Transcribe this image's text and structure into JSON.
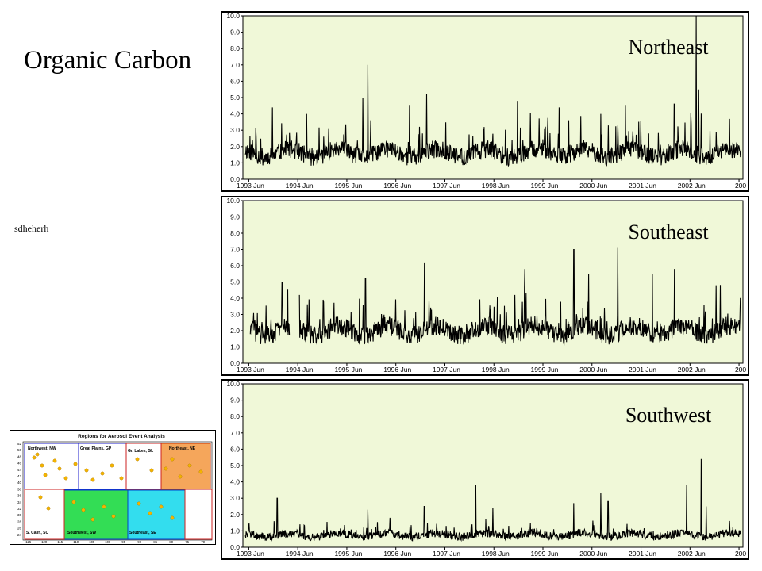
{
  "page": {
    "title": "Organic Carbon",
    "note": "sdheherh"
  },
  "colors": {
    "plot_background": "#f0f8d8",
    "series_line": "#000000",
    "map_northeast": "#f5a65b",
    "map_southwest": "#33dd55",
    "map_southeast": "#33ddee",
    "map_site_dot": "#f5b400"
  },
  "chart_data": [
    {
      "type": "line",
      "region_label": "Northeast",
      "x_tick_labels": [
        "1993 Jun",
        "1994 Jun",
        "1995 Jun",
        "1996 Jun",
        "1997 Jun",
        "1998 Jun",
        "1999 Jun",
        "2000 Jun",
        "2001 Jun",
        "2002 Jun",
        "200"
      ],
      "y_tick_labels": [
        "0.0",
        "1.0",
        "2.0",
        "3.0",
        "4.0",
        "5.0",
        "6.0",
        "7.0",
        "8.0",
        "9.0",
        "10.0"
      ],
      "ylim": [
        0,
        10
      ],
      "xlim": [
        1993.3,
        2003.5
      ],
      "series": [
        {
          "baseline": 1.6,
          "noise": 0.55,
          "spike_rate": 0.07,
          "spike_scale": 1.6,
          "seed": 11,
          "peaks": [
            [
              1995.85,
              7.0
            ],
            [
              1995.75,
              5.0
            ],
            [
              1997.05,
              5.2
            ],
            [
              1993.9,
              4.4
            ],
            [
              1996.7,
              4.5
            ],
            [
              1998.9,
              4.8
            ],
            [
              2002.55,
              10.0
            ],
            [
              2002.6,
              5.5
            ],
            [
              1999.75,
              4.4
            ],
            [
              2001.1,
              4.5
            ],
            [
              1994.6,
              4.0
            ],
            [
              2000.6,
              4.0
            ],
            [
              2002.1,
              4.6
            ]
          ]
        }
      ]
    },
    {
      "type": "line",
      "region_label": "Southeast",
      "x_tick_labels": [
        "1993 Jun",
        "1994 Jun",
        "1995 Jun",
        "1996 Jun",
        "1997 Jun",
        "1998 Jun",
        "1999 Jun",
        "2000 Jun",
        "2001 Jun",
        "2002 Jun",
        "200"
      ],
      "y_tick_labels": [
        "0.0",
        "1.0",
        "2.0",
        "3.0",
        "4.0",
        "5.0",
        "6.0",
        "7.0",
        "8.0",
        "9.0",
        "10.0"
      ],
      "ylim": [
        0,
        10
      ],
      "xlim": [
        1993.3,
        2003.5
      ],
      "series": [
        {
          "baseline": 2.0,
          "noise": 0.6,
          "spike_rate": 0.08,
          "spike_scale": 1.5,
          "seed": 29,
          "start": 1993.45,
          "gap": [
            1994.25,
            1994.45
          ],
          "peaks": [
            [
              1994.1,
              5.0
            ],
            [
              1994.45,
              4.2
            ],
            [
              1995.8,
              5.2
            ],
            [
              1997.0,
              6.2
            ],
            [
              1998.85,
              4.2
            ],
            [
              1999.05,
              5.8
            ],
            [
              2000.05,
              7.0
            ],
            [
              2000.35,
              5.5
            ],
            [
              2000.95,
              7.1
            ],
            [
              2001.65,
              5.5
            ],
            [
              2002.1,
              5.8
            ],
            [
              2002.95,
              4.8
            ]
          ]
        }
      ]
    },
    {
      "type": "line",
      "region_label": "Southwest",
      "x_tick_labels": [
        "1993 Jun",
        "1994 Jun",
        "1995 Jun",
        "1996 Jun",
        "1997 Jun",
        "1998 Jun",
        "1999 Jun",
        "2000 Jun",
        "2001 Jun",
        "2002 Jun",
        "200"
      ],
      "y_tick_labels": [
        "0.0",
        "1.0",
        "2.0",
        "3.0",
        "4.0",
        "5.0",
        "6.0",
        "7.0",
        "8.0",
        "9.0",
        "10.0"
      ],
      "ylim": [
        0,
        10
      ],
      "xlim": [
        1993.3,
        2003.5
      ],
      "series": [
        {
          "baseline": 0.75,
          "noise": 0.25,
          "spike_rate": 0.05,
          "spike_scale": 1.2,
          "seed": 47,
          "peaks": [
            [
              1994.0,
              3.0
            ],
            [
              1995.85,
              2.3
            ],
            [
              1997.0,
              2.5
            ],
            [
              1998.05,
              3.8
            ],
            [
              1998.4,
              2.4
            ],
            [
              2000.05,
              2.7
            ],
            [
              2000.6,
              3.3
            ],
            [
              2000.75,
              2.8
            ],
            [
              2002.35,
              3.8
            ],
            [
              2002.65,
              5.4
            ],
            [
              2002.75,
              2.5
            ],
            [
              1996.3,
              1.8
            ]
          ]
        }
      ]
    }
  ],
  "map": {
    "title": "Regions for Aerosol Event Analysis",
    "regions": [
      "Northwest, NW",
      "Great Plains, GP",
      "Gr. Lakes, GL",
      "Northeast, NE",
      "S. Calif., SC",
      "Southwest, SW",
      "Southeast, SE"
    ],
    "lat_labels": [
      "52",
      "50",
      "48",
      "46",
      "44",
      "42",
      "40",
      "38",
      "36",
      "34",
      "32",
      "30",
      "28",
      "26",
      "24"
    ],
    "lon_labels": [
      "-125",
      "-120",
      "-115",
      "-110",
      "-105",
      "-100",
      "-95",
      "-90",
      "-85",
      "-80",
      "-75",
      "-70"
    ]
  }
}
